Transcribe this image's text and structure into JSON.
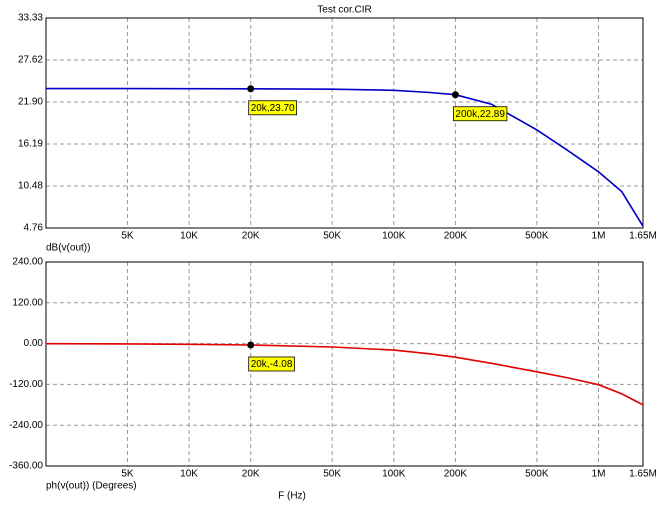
{
  "chart_data": [
    {
      "type": "line",
      "title": "Test cor.CIR",
      "log_x": true,
      "grid": true,
      "x": [
        2000,
        5000,
        10000,
        20000,
        50000,
        100000,
        150000,
        200000,
        300000,
        500000,
        700000,
        1000000,
        1300000,
        1650000
      ],
      "series": [
        {
          "name": "dB(v(out))",
          "color": "#0000c8",
          "values": [
            23.72,
            23.72,
            23.71,
            23.7,
            23.65,
            23.5,
            23.2,
            22.89,
            21.6,
            18.1,
            15.4,
            12.4,
            9.7,
            5.0
          ]
        }
      ],
      "xlim": [
        2000,
        1650000
      ],
      "xticks": [
        {
          "value": 5000,
          "label": "5K"
        },
        {
          "value": 10000,
          "label": "10K"
        },
        {
          "value": 20000,
          "label": "20K"
        },
        {
          "value": 50000,
          "label": "50K"
        },
        {
          "value": 100000,
          "label": "100K"
        },
        {
          "value": 200000,
          "label": "200K"
        },
        {
          "value": 500000,
          "label": "500K"
        },
        {
          "value": 1000000,
          "label": "1M"
        },
        {
          "value": 1650000,
          "label": "1.65M"
        }
      ],
      "ylim": [
        4.76,
        33.33
      ],
      "yticks": [
        4.76,
        10.48,
        16.19,
        {
          "value": 21.9,
          "label": "21.90"
        },
        27.62,
        33.33
      ],
      "annotations": [
        {
          "x": 20000,
          "y": 23.7,
          "label": "20k,23.70"
        },
        {
          "x": 200000,
          "y": 22.89,
          "label": "200k,22.89"
        }
      ]
    },
    {
      "type": "line",
      "x_label": "F (Hz)",
      "log_x": true,
      "grid": true,
      "x": [
        2000,
        5000,
        10000,
        20000,
        50000,
        100000,
        150000,
        200000,
        300000,
        500000,
        700000,
        1000000,
        1300000,
        1650000
      ],
      "series": [
        {
          "name": "ph(v(out)) (Degrees)",
          "color": "#e00000",
          "values": [
            -0.4,
            -1,
            -2,
            -4.08,
            -10,
            -19,
            -30,
            -40,
            -58,
            -83,
            -100,
            -121,
            -148,
            -180
          ]
        }
      ],
      "xlim": [
        2000,
        1650000
      ],
      "xticks": [
        {
          "value": 5000,
          "label": "5K"
        },
        {
          "value": 10000,
          "label": "10K"
        },
        {
          "value": 20000,
          "label": "20K"
        },
        {
          "value": 50000,
          "label": "50K"
        },
        {
          "value": 100000,
          "label": "100K"
        },
        {
          "value": 200000,
          "label": "200K"
        },
        {
          "value": 500000,
          "label": "500K"
        },
        {
          "value": 1000000,
          "label": "1M"
        },
        {
          "value": 1650000,
          "label": "1.65M"
        }
      ],
      "ylim": [
        -360,
        240
      ],
      "yticks": [
        {
          "value": -360,
          "label": "-360.00"
        },
        {
          "value": -240,
          "label": "-240.00"
        },
        {
          "value": -120,
          "label": "-120.00"
        },
        {
          "value": 0,
          "label": "0.00"
        },
        {
          "value": 120,
          "label": "120.00"
        },
        {
          "value": 240,
          "label": "240.00"
        }
      ],
      "annotations": [
        {
          "x": 20000,
          "y": -4.08,
          "label": "20k,-4.08"
        }
      ]
    }
  ]
}
